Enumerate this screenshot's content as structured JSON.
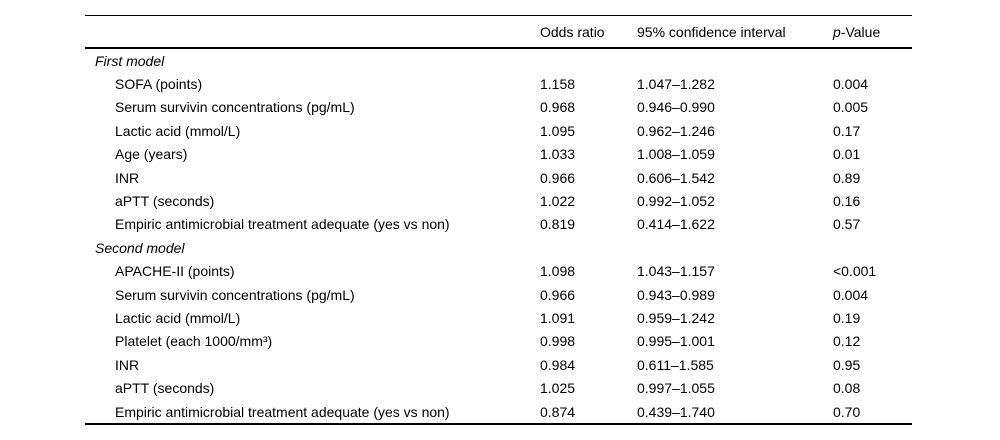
{
  "table": {
    "headers": {
      "parameter": "",
      "odds_ratio": "Odds ratio",
      "ci": "95% confidence interval",
      "p_italic": "p",
      "p_rest": "-Value"
    },
    "sections": [
      {
        "label": "First model",
        "rows": [
          {
            "label": "SOFA (points)",
            "or": "1.158",
            "ci": "1.047–1.282",
            "p": "0.004"
          },
          {
            "label": "Serum survivin concentrations (pg/mL)",
            "or": "0.968",
            "ci": "0.946–0.990",
            "p": "0.005"
          },
          {
            "label": "Lactic acid (mmol/L)",
            "or": "1.095",
            "ci": "0.962–1.246",
            "p": "0.17"
          },
          {
            "label": "Age (years)",
            "or": "1.033",
            "ci": "1.008–1.059",
            "p": "0.01"
          },
          {
            "label": "INR",
            "or": "0.966",
            "ci": "0.606–1.542",
            "p": "0.89"
          },
          {
            "label": "aPTT (seconds)",
            "or": "1.022",
            "ci": "0.992–1.052",
            "p": "0.16"
          },
          {
            "label": "Empiric antimicrobial treatment adequate (yes vs non)",
            "or": "0.819",
            "ci": "0.414–1.622",
            "p": "0.57"
          }
        ]
      },
      {
        "label": "Second model",
        "rows": [
          {
            "label": "APACHE-II (points)",
            "or": "1.098",
            "ci": "1.043–1.157",
            "p": "<0.001"
          },
          {
            "label": "Serum survivin concentrations (pg/mL)",
            "or": "0.966",
            "ci": "0.943–0.989",
            "p": "0.004"
          },
          {
            "label": "Lactic acid (mmol/L)",
            "or": "1.091",
            "ci": "0.959–1.242",
            "p": "0.19"
          },
          {
            "label": "Platelet (each 1000/mm³)",
            "or": "0.998",
            "ci": "0.995–1.001",
            "p": "0.12"
          },
          {
            "label": "INR",
            "or": "0.984",
            "ci": "0.611–1.585",
            "p": "0.95"
          },
          {
            "label": "aPTT (seconds)",
            "or": "1.025",
            "ci": "0.997–1.055",
            "p": "0.08"
          },
          {
            "label": "Empiric antimicrobial treatment adequate (yes vs non)",
            "or": "0.874",
            "ci": "0.439–1.740",
            "p": "0.70"
          }
        ]
      }
    ]
  }
}
